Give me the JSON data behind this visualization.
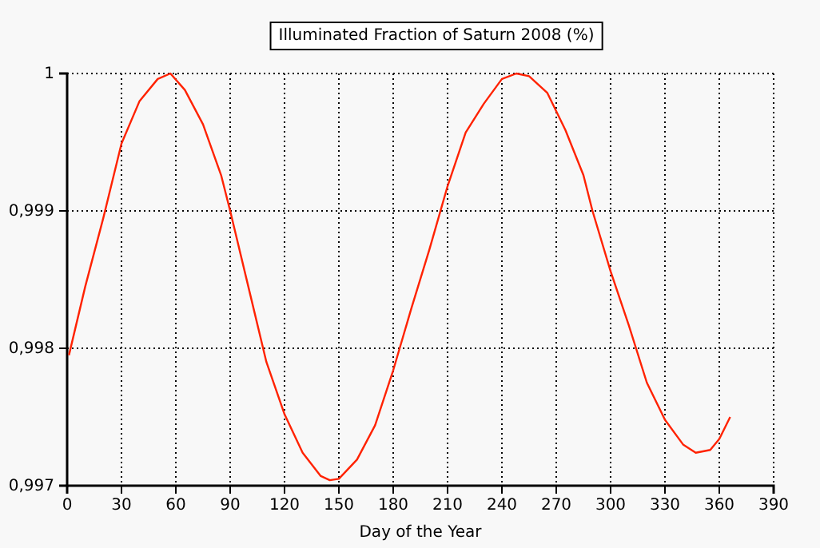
{
  "chart_data": {
    "type": "line",
    "title": "Illuminated Fraction of Saturn 2008 (%)",
    "xlabel": "Day of the Year",
    "x": [
      1,
      10,
      20,
      30,
      40,
      50,
      57,
      65,
      75,
      85,
      90,
      100,
      110,
      120,
      130,
      140,
      145,
      150,
      160,
      170,
      180,
      190,
      200,
      210,
      220,
      230,
      240,
      248,
      255,
      265,
      275,
      285,
      290,
      300,
      310,
      320,
      330,
      340,
      347,
      355,
      360,
      366
    ],
    "series": [
      {
        "color": "#ff2200",
        "values": [
          0.99795,
          0.99845,
          0.99895,
          0.99949,
          0.9998,
          0.99996,
          1,
          0.99988,
          0.99963,
          0.99926,
          0.999,
          0.99845,
          0.9979,
          0.99752,
          0.99724,
          0.99707,
          0.99704,
          0.99705,
          0.99719,
          0.99744,
          0.99784,
          0.99829,
          0.99872,
          0.99918,
          0.99957,
          0.99978,
          0.99996,
          1,
          0.99998,
          0.99986,
          0.99959,
          0.99926,
          0.999,
          0.99856,
          0.99817,
          0.99775,
          0.99748,
          0.9973,
          0.99724,
          0.99726,
          0.99734,
          0.9975
        ]
      }
    ],
    "xlim": [
      0,
      390
    ],
    "xticks": [
      0,
      30,
      60,
      90,
      120,
      150,
      180,
      210,
      240,
      270,
      300,
      330,
      360,
      390
    ],
    "ylim": [
      0.997,
      1
    ],
    "yticks": [
      {
        "value": 0.997,
        "label": "0,997"
      },
      {
        "value": 0.998,
        "label": "0,998"
      },
      {
        "value": 0.999,
        "label": "0,999"
      },
      {
        "value": 1,
        "label": "1"
      }
    ],
    "grid": true,
    "marker": "none",
    "line_style": "solid"
  }
}
